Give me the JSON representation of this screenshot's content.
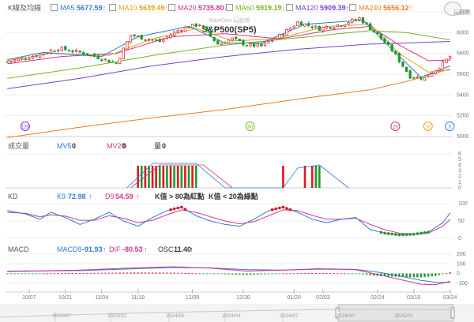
{
  "header": {
    "kline_title": "K線及均線",
    "watermark": "WantGoo 玩股網",
    "chart_title": "S&P500(SP5)",
    "logo_text": "玩股網"
  },
  "ma_legend": [
    {
      "label": "MA5",
      "value": "5677.59",
      "arrow": "↑",
      "color": "#2e7bd6"
    },
    {
      "label": "MA10",
      "value": "5639.49",
      "arrow": "↑",
      "color": "#e3a21a"
    },
    {
      "label": "MA20",
      "value": "5735.80",
      "arrow": "↓",
      "color": "#d6338a"
    },
    {
      "label": "MA60",
      "value": "5919.19",
      "arrow": "↓",
      "color": "#7ab317"
    },
    {
      "label": "MA120",
      "value": "5909.39",
      "arrow": "↑",
      "color": "#7b3fd0"
    },
    {
      "label": "MA240",
      "value": "5656.12",
      "arrow": "↑",
      "color": "#f07a1a"
    }
  ],
  "volume_legend": {
    "title": "成交量",
    "ma5_label": "MV5",
    "ma5_value": "0",
    "ma20_label": "MV20",
    "ma20_value": "0",
    "vol_label": "量",
    "vol_value": "0"
  },
  "kd_legend": {
    "title": "KD",
    "k_label": "K9",
    "k_value": "72.98",
    "k_arrow": "↑",
    "d_label": "D9",
    "d_value": "54.59",
    "d_arrow": "↑",
    "note1": "K值 > 80為紅點",
    "note2": "K值 < 20為綠點"
  },
  "macd_legend": {
    "title": "MACD",
    "macd_label": "MACD9",
    "macd_value": "-91.93",
    "macd_arrow": "↑",
    "dif_label": "DIF",
    "dif_value": "-80.53",
    "dif_arrow": "↑",
    "osc_label": "OSC",
    "osc_value": "11.40",
    "osc_arrow": "↑"
  },
  "colors": {
    "up": "#e0161c",
    "down": "#1f9a2b",
    "grid": "#ececec",
    "axis_text": "#777777",
    "kd_k": "#2e7bd6",
    "kd_d": "#d6338a",
    "macd_line": "#2e7bd6",
    "dif_line": "#d6338a"
  },
  "chart_data": {
    "type": "candlestick",
    "price_axis": {
      "min": 5000,
      "max": 6200,
      "ticks": [
        6200,
        6000,
        5800,
        5600,
        5400,
        5200,
        5000
      ]
    },
    "volume_axis": {
      "ticks": [
        6,
        5,
        4,
        3,
        2,
        1,
        0
      ],
      "min": 0,
      "max": 6
    },
    "kd_axis": {
      "ticks": [
        100,
        50,
        0
      ],
      "min": 0,
      "max": 100
    },
    "macd_axis": {
      "ticks": [
        200,
        100,
        0,
        -100
      ],
      "min": -150,
      "max": 200
    },
    "date_ticks": [
      {
        "label": "10/07",
        "index": 6
      },
      {
        "label": "10/21",
        "index": 16
      },
      {
        "label": "11/04",
        "index": 26
      },
      {
        "label": "11/18",
        "index": 36
      },
      {
        "label": "12/09",
        "index": 51
      },
      {
        "label": "12/30",
        "index": 65
      },
      {
        "label": "01/20",
        "index": 79
      },
      {
        "label": "02/03",
        "index": 87
      },
      {
        "label": "02/24",
        "index": 102
      },
      {
        "label": "03/10",
        "index": 112
      },
      {
        "label": "03/24",
        "index": 122
      }
    ],
    "overview_labels": [
      "2023/07",
      "2023/10",
      "2024/01",
      "2024/04",
      "2024/07",
      "2024/10",
      "2025/01"
    ],
    "ma_badges": [
      {
        "label": "120",
        "index": 1
      },
      {
        "label": "60",
        "index": 63
      },
      {
        "label": "20",
        "index": 103
      },
      {
        "label": "10",
        "index": 112
      },
      {
        "label": "5",
        "index": 118
      }
    ],
    "ohlc_anchors": [
      {
        "i": 0,
        "c": 5720
      },
      {
        "i": 8,
        "c": 5780
      },
      {
        "i": 14,
        "c": 5850
      },
      {
        "i": 22,
        "c": 5795
      },
      {
        "i": 30,
        "c": 5705
      },
      {
        "i": 34,
        "c": 5975
      },
      {
        "i": 42,
        "c": 5915
      },
      {
        "i": 48,
        "c": 6040
      },
      {
        "i": 53,
        "c": 6080
      },
      {
        "i": 58,
        "c": 5890
      },
      {
        "i": 62,
        "c": 5940
      },
      {
        "i": 66,
        "c": 5880
      },
      {
        "i": 70,
        "c": 5870
      },
      {
        "i": 76,
        "c": 5990
      },
      {
        "i": 80,
        "c": 6100
      },
      {
        "i": 86,
        "c": 6040
      },
      {
        "i": 92,
        "c": 6080
      },
      {
        "i": 97,
        "c": 6140
      },
      {
        "i": 102,
        "c": 5980
      },
      {
        "i": 106,
        "c": 5830
      },
      {
        "i": 111,
        "c": 5580
      },
      {
        "i": 115,
        "c": 5560
      },
      {
        "i": 119,
        "c": 5670
      },
      {
        "i": 122,
        "c": 5770
      }
    ],
    "ma_series": [
      {
        "name": "MA240",
        "color": "#f07a1a",
        "points": [
          [
            0,
            4990
          ],
          [
            20,
            5090
          ],
          [
            40,
            5180
          ],
          [
            60,
            5260
          ],
          [
            80,
            5360
          ],
          [
            100,
            5450
          ],
          [
            110,
            5530
          ],
          [
            122,
            5650
          ]
        ]
      },
      {
        "name": "MA120",
        "color": "#7b3fd0",
        "points": [
          [
            0,
            5460
          ],
          [
            20,
            5560
          ],
          [
            40,
            5680
          ],
          [
            60,
            5770
          ],
          [
            80,
            5840
          ],
          [
            100,
            5890
          ],
          [
            110,
            5900
          ],
          [
            122,
            5915
          ]
        ]
      },
      {
        "name": "MA60",
        "color": "#7ab317",
        "points": [
          [
            0,
            5560
          ],
          [
            20,
            5660
          ],
          [
            40,
            5780
          ],
          [
            60,
            5880
          ],
          [
            80,
            5950
          ],
          [
            100,
            6020
          ],
          [
            110,
            6000
          ],
          [
            122,
            5930
          ]
        ]
      },
      {
        "name": "MA20",
        "color": "#d6338a",
        "points": [
          [
            0,
            5700
          ],
          [
            15,
            5770
          ],
          [
            30,
            5800
          ],
          [
            45,
            5960
          ],
          [
            60,
            5990
          ],
          [
            75,
            5940
          ],
          [
            90,
            6030
          ],
          [
            100,
            6060
          ],
          [
            108,
            5880
          ],
          [
            116,
            5730
          ],
          [
            122,
            5735
          ]
        ]
      },
      {
        "name": "MA10",
        "color": "#e3a21a",
        "points": [
          [
            0,
            5730
          ],
          [
            12,
            5800
          ],
          [
            28,
            5780
          ],
          [
            40,
            5940
          ],
          [
            52,
            6040
          ],
          [
            62,
            5920
          ],
          [
            74,
            5940
          ],
          [
            88,
            6060
          ],
          [
            100,
            6080
          ],
          [
            108,
            5800
          ],
          [
            116,
            5620
          ],
          [
            122,
            5640
          ]
        ]
      },
      {
        "name": "MA5",
        "color": "#2e7bd6",
        "points": [
          [
            0,
            5740
          ],
          [
            10,
            5810
          ],
          [
            26,
            5770
          ],
          [
            36,
            5960
          ],
          [
            50,
            6060
          ],
          [
            60,
            5900
          ],
          [
            70,
            5900
          ],
          [
            82,
            6080
          ],
          [
            98,
            6120
          ],
          [
            106,
            5840
          ],
          [
            114,
            5570
          ],
          [
            122,
            5680
          ]
        ]
      }
    ],
    "kd_k": [
      [
        0,
        80
      ],
      [
        5,
        70
      ],
      [
        9,
        55
      ],
      [
        12,
        75
      ],
      [
        16,
        60
      ],
      [
        20,
        40
      ],
      [
        24,
        55
      ],
      [
        28,
        75
      ],
      [
        32,
        50
      ],
      [
        36,
        35
      ],
      [
        40,
        60
      ],
      [
        44,
        80
      ],
      [
        48,
        90
      ],
      [
        52,
        65
      ],
      [
        56,
        50
      ],
      [
        60,
        40
      ],
      [
        64,
        35
      ],
      [
        68,
        55
      ],
      [
        72,
        80
      ],
      [
        76,
        90
      ],
      [
        80,
        75
      ],
      [
        84,
        55
      ],
      [
        88,
        45
      ],
      [
        92,
        55
      ],
      [
        96,
        60
      ],
      [
        100,
        25
      ],
      [
        104,
        15
      ],
      [
        108,
        10
      ],
      [
        112,
        12
      ],
      [
        116,
        18
      ],
      [
        120,
        45
      ],
      [
        122,
        72.98
      ]
    ],
    "kd_d": [
      [
        0,
        75
      ],
      [
        5,
        72
      ],
      [
        9,
        62
      ],
      [
        12,
        68
      ],
      [
        16,
        64
      ],
      [
        20,
        52
      ],
      [
        24,
        52
      ],
      [
        28,
        65
      ],
      [
        32,
        58
      ],
      [
        36,
        45
      ],
      [
        40,
        52
      ],
      [
        44,
        68
      ],
      [
        48,
        82
      ],
      [
        52,
        75
      ],
      [
        56,
        62
      ],
      [
        60,
        50
      ],
      [
        64,
        42
      ],
      [
        68,
        48
      ],
      [
        72,
        65
      ],
      [
        76,
        82
      ],
      [
        80,
        80
      ],
      [
        84,
        66
      ],
      [
        88,
        55
      ],
      [
        92,
        55
      ],
      [
        96,
        58
      ],
      [
        100,
        40
      ],
      [
        104,
        25
      ],
      [
        108,
        15
      ],
      [
        112,
        12
      ],
      [
        116,
        15
      ],
      [
        120,
        35
      ],
      [
        122,
        54.59
      ]
    ],
    "macd_dif": [
      [
        0,
        20
      ],
      [
        20,
        35
      ],
      [
        36,
        60
      ],
      [
        46,
        70
      ],
      [
        56,
        55
      ],
      [
        66,
        25
      ],
      [
        76,
        35
      ],
      [
        86,
        50
      ],
      [
        96,
        40
      ],
      [
        102,
        -10
      ],
      [
        108,
        -60
      ],
      [
        114,
        -110
      ],
      [
        118,
        -115
      ],
      [
        122,
        -80.53
      ]
    ],
    "macd_macd": [
      [
        0,
        25
      ],
      [
        20,
        30
      ],
      [
        36,
        50
      ],
      [
        46,
        62
      ],
      [
        56,
        58
      ],
      [
        66,
        40
      ],
      [
        76,
        35
      ],
      [
        86,
        45
      ],
      [
        96,
        42
      ],
      [
        102,
        15
      ],
      [
        108,
        -25
      ],
      [
        114,
        -70
      ],
      [
        118,
        -90
      ],
      [
        122,
        -91.93
      ]
    ]
  }
}
